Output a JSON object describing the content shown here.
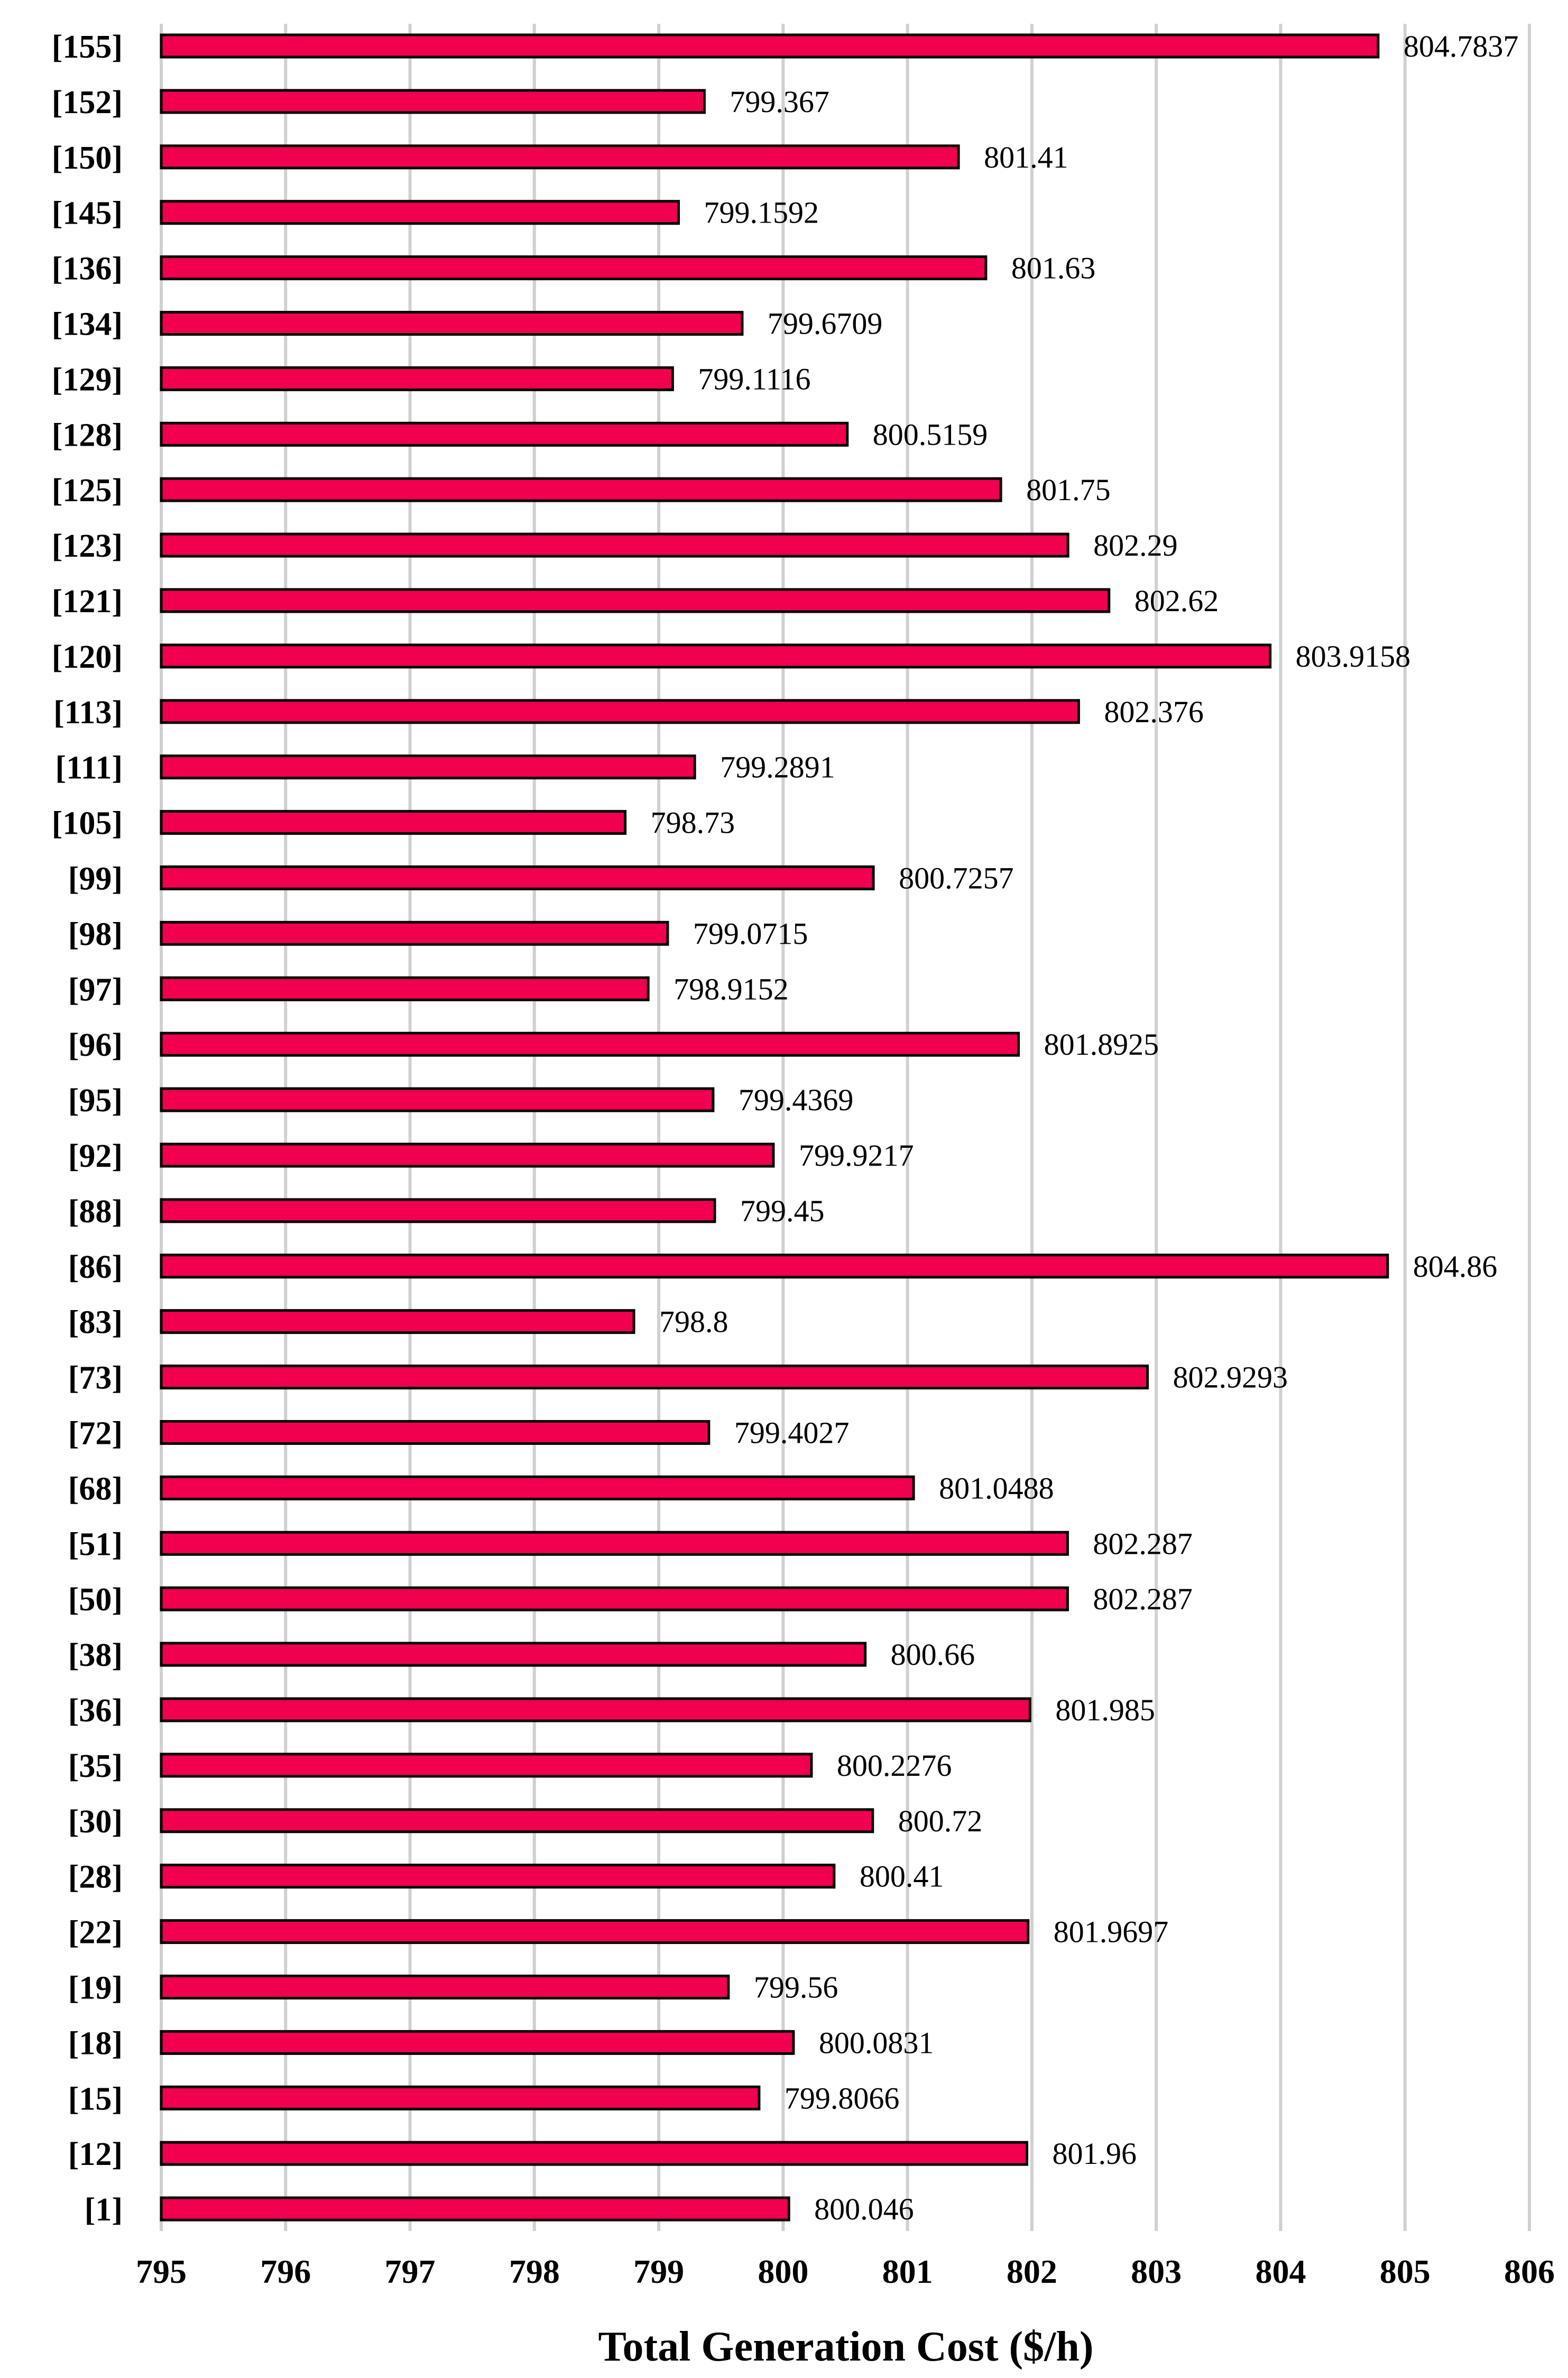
{
  "chart_data": {
    "type": "bar",
    "orientation": "horizontal",
    "categories": [
      "[155]",
      "[152]",
      "[150]",
      "[145]",
      "[136]",
      "[134]",
      "[129]",
      "[128]",
      "[125]",
      "[123]",
      "[121]",
      "[120]",
      "[113]",
      "[111]",
      "[105]",
      "[99]",
      "[98]",
      "[97]",
      "[96]",
      "[95]",
      "[92]",
      "[88]",
      "[86]",
      "[83]",
      "[73]",
      "[72]",
      "[68]",
      "[51]",
      "[50]",
      "[38]",
      "[36]",
      "[35]",
      "[30]",
      "[28]",
      "[22]",
      "[19]",
      "[18]",
      "[15]",
      "[12]",
      "[1]"
    ],
    "values": [
      804.7837,
      799.367,
      801.41,
      799.1592,
      801.63,
      799.6709,
      799.1116,
      800.5159,
      801.75,
      802.29,
      802.62,
      803.9158,
      802.376,
      799.2891,
      798.73,
      800.7257,
      799.0715,
      798.9152,
      801.8925,
      799.4369,
      799.9217,
      799.45,
      804.86,
      798.8,
      802.9293,
      799.4027,
      801.0488,
      802.287,
      802.287,
      800.66,
      801.985,
      800.2276,
      800.72,
      800.41,
      801.9697,
      799.56,
      800.0831,
      799.8066,
      801.96,
      800.046
    ],
    "value_labels": [
      "804.7837",
      "799.367",
      "801.41",
      "799.1592",
      "801.63",
      "799.6709",
      "799.1116",
      "800.5159",
      "801.75",
      "802.29",
      "802.62",
      "803.9158",
      "802.376",
      "799.2891",
      "798.73",
      "800.7257",
      "799.0715",
      "798.9152",
      "801.8925",
      "799.4369",
      "799.9217",
      "799.45",
      "804.86",
      "798.8",
      "802.9293",
      "799.4027",
      "801.0488",
      "802.287",
      "802.287",
      "800.66",
      "801.985",
      "800.2276",
      "800.72",
      "800.41",
      "801.9697",
      "799.56",
      "800.0831",
      "799.8066",
      "801.96",
      "800.046"
    ],
    "xlabel": "Total Generation Cost ($/h)",
    "ylabel": "",
    "xlim": [
      795,
      806
    ],
    "ticks": [
      795,
      796,
      797,
      798,
      799,
      800,
      801,
      802,
      803,
      804,
      805,
      806
    ],
    "grid": "vertical",
    "legend": "none",
    "bar_color": "#F0004F",
    "bar_outline": "#000000",
    "grid_color": "#D0D0D0"
  }
}
